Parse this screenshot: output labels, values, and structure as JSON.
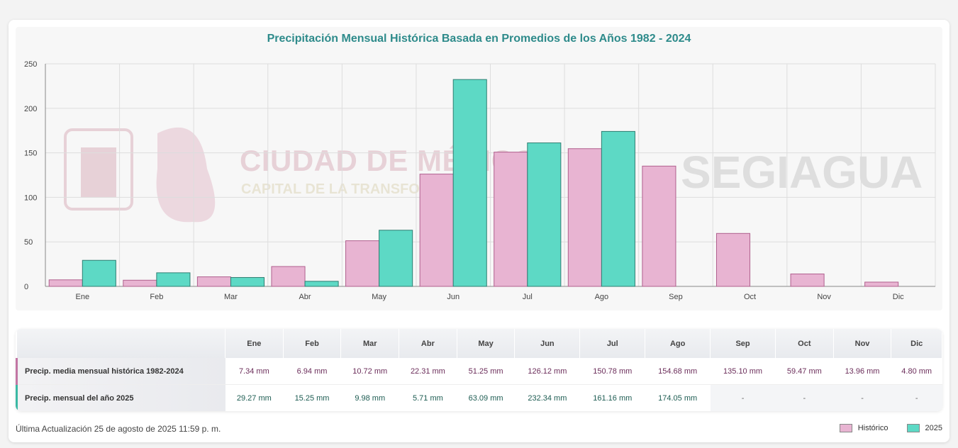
{
  "chart_data": {
    "type": "bar",
    "title": "Precipitación Mensual Histórica Basada en Promedios de los Años 1982 - 2024",
    "categories": [
      "Ene",
      "Feb",
      "Mar",
      "Abr",
      "May",
      "Jun",
      "Jul",
      "Ago",
      "Sep",
      "Oct",
      "Nov",
      "Dic"
    ],
    "series": [
      {
        "name": "Histórico",
        "values": [
          7.34,
          6.94,
          10.72,
          22.31,
          51.25,
          126.12,
          150.78,
          154.68,
          135.1,
          59.47,
          13.96,
          4.8
        ],
        "color": "#e8b4d2",
        "border": "#b0608e"
      },
      {
        "name": "2025",
        "values": [
          29.27,
          15.25,
          9.98,
          5.71,
          63.09,
          232.34,
          161.16,
          174.05,
          null,
          null,
          null,
          null
        ],
        "color": "#5dd9c5",
        "border": "#2e7f72"
      }
    ],
    "ylim": [
      0,
      250
    ],
    "yticks": [
      0,
      50,
      100,
      150,
      200,
      250
    ],
    "grid": true
  },
  "watermark": {
    "line1": "CIUDAD DE MÉXICO",
    "line2": "CAPITAL DE LA TRANSFORMACIÓN",
    "brand": "SEGIAGUA"
  },
  "table": {
    "months": [
      "Ene",
      "Feb",
      "Mar",
      "Abr",
      "May",
      "Jun",
      "Jul",
      "Ago",
      "Sep",
      "Oct",
      "Nov",
      "Dic"
    ],
    "rows": [
      {
        "label": "Precip. media mensual histórica 1982-2024",
        "values": [
          "7.34 mm",
          "6.94 mm",
          "10.72 mm",
          "22.31 mm",
          "51.25 mm",
          "126.12 mm",
          "150.78 mm",
          "154.68 mm",
          "135.10 mm",
          "59.47 mm",
          "13.96 mm",
          "4.80 mm"
        ]
      },
      {
        "label": "Precip. mensual del año 2025",
        "values": [
          "29.27 mm",
          "15.25 mm",
          "9.98 mm",
          "5.71 mm",
          "63.09 mm",
          "232.34 mm",
          "161.16 mm",
          "174.05 mm",
          "-",
          "-",
          "-",
          "-"
        ]
      }
    ]
  },
  "footer": {
    "updated": "Última Actualización 25 de agosto de 2025 11:59 p. m."
  },
  "legend": {
    "items": [
      {
        "label": "Histórico",
        "color": "#e8b4d2"
      },
      {
        "label": "2025",
        "color": "#5dd9c5"
      }
    ]
  }
}
